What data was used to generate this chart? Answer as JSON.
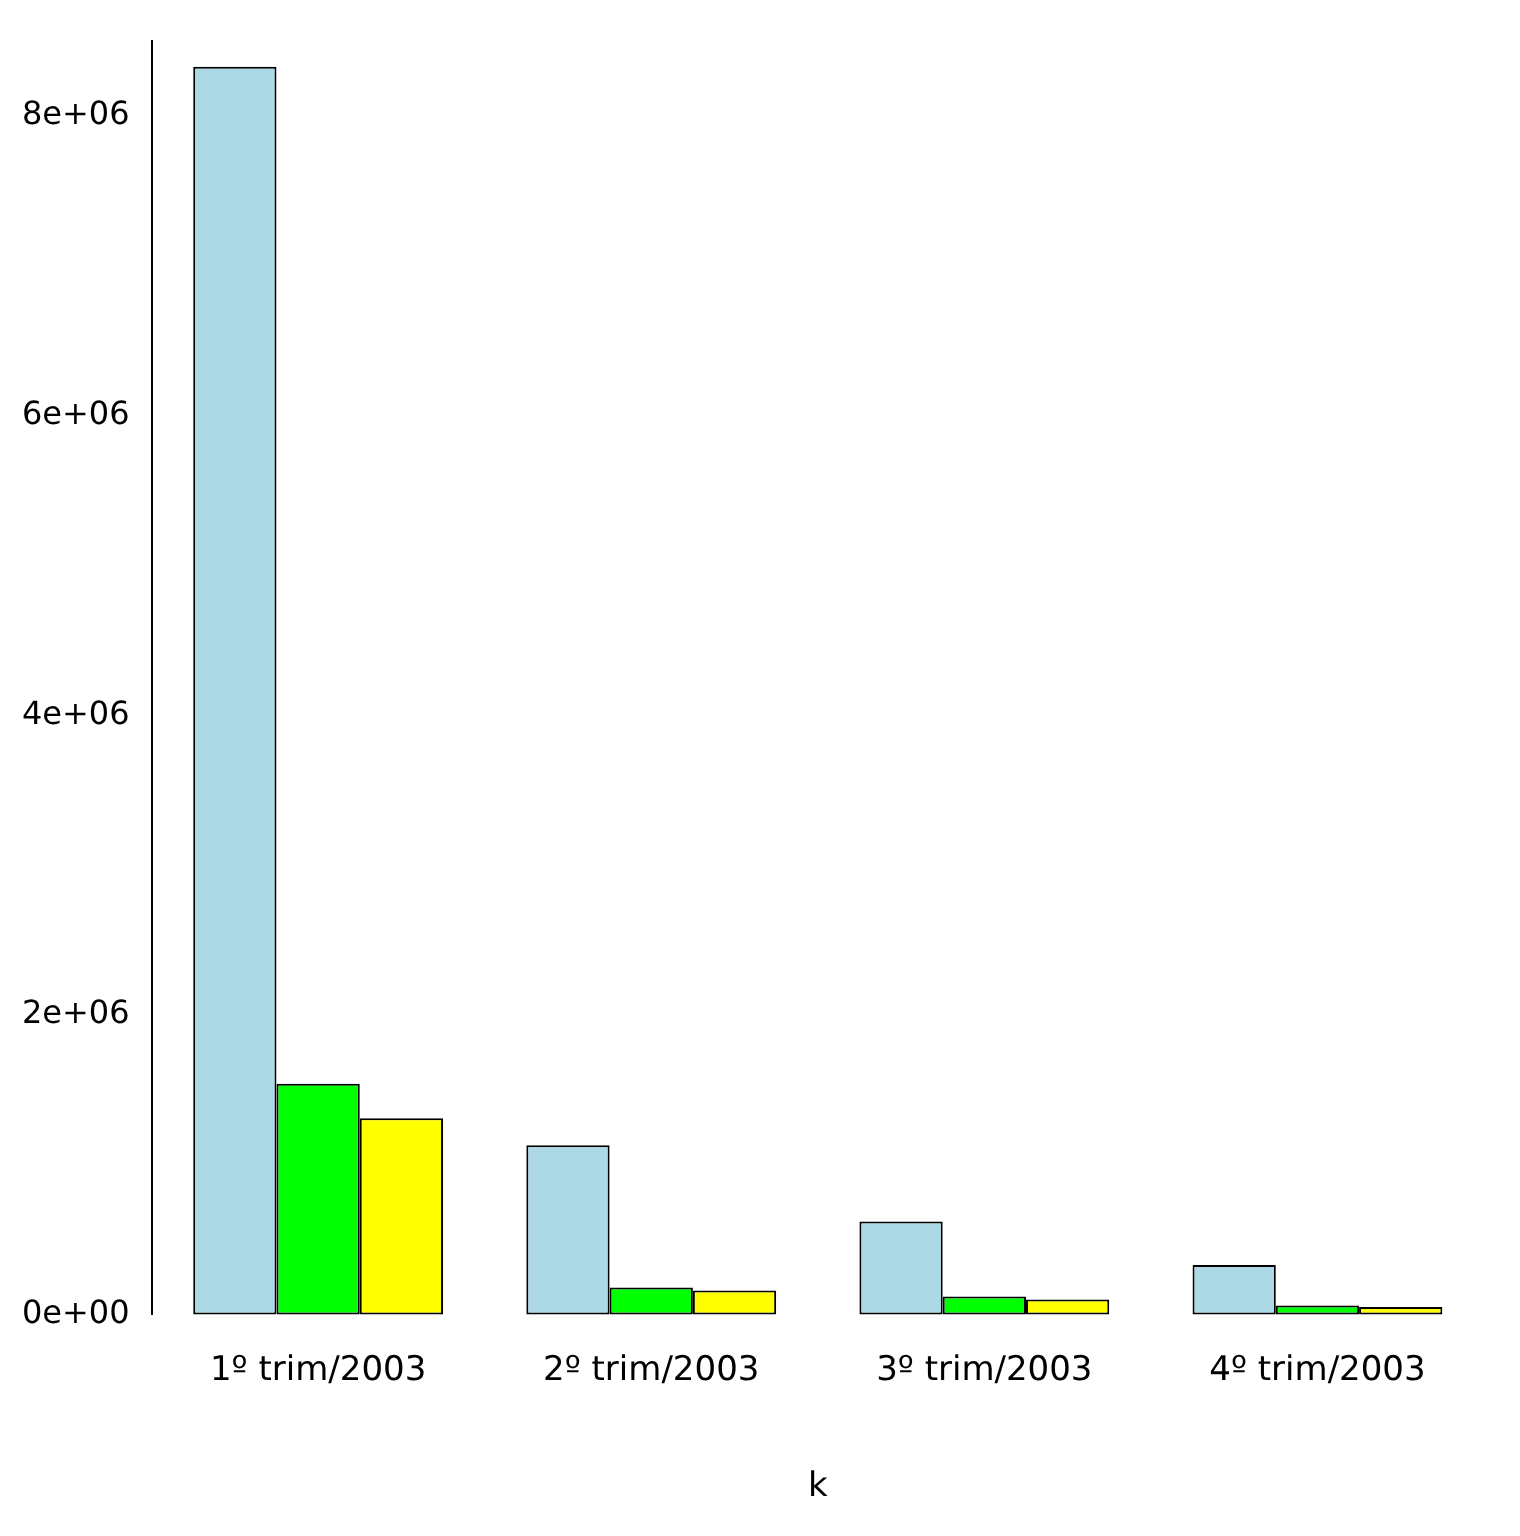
{
  "chart_data": {
    "type": "bar",
    "xlabel": "k",
    "categories": [
      "1º trim/2003",
      "2º trim/2003",
      "3º trim/2003",
      "4º trim/2003"
    ],
    "series": [
      {
        "color": "#add8e6",
        "values": [
          8330000,
          1130000,
          620000,
          330000
        ]
      },
      {
        "color": "#00ff00",
        "values": [
          1540000,
          180000,
          120000,
          60000
        ]
      },
      {
        "color": "#ffff00",
        "values": [
          1310000,
          160000,
          100000,
          50000
        ]
      }
    ],
    "ylim": [
      0,
      8500000
    ],
    "yticks": [
      {
        "value": 0,
        "label": "0e+00"
      },
      {
        "value": 2000000,
        "label": "2e+06"
      },
      {
        "value": 4000000,
        "label": "4e+06"
      },
      {
        "value": 6000000,
        "label": "6e+06"
      },
      {
        "value": 8000000,
        "label": "8e+06"
      }
    ],
    "grid": false,
    "legend": false
  }
}
